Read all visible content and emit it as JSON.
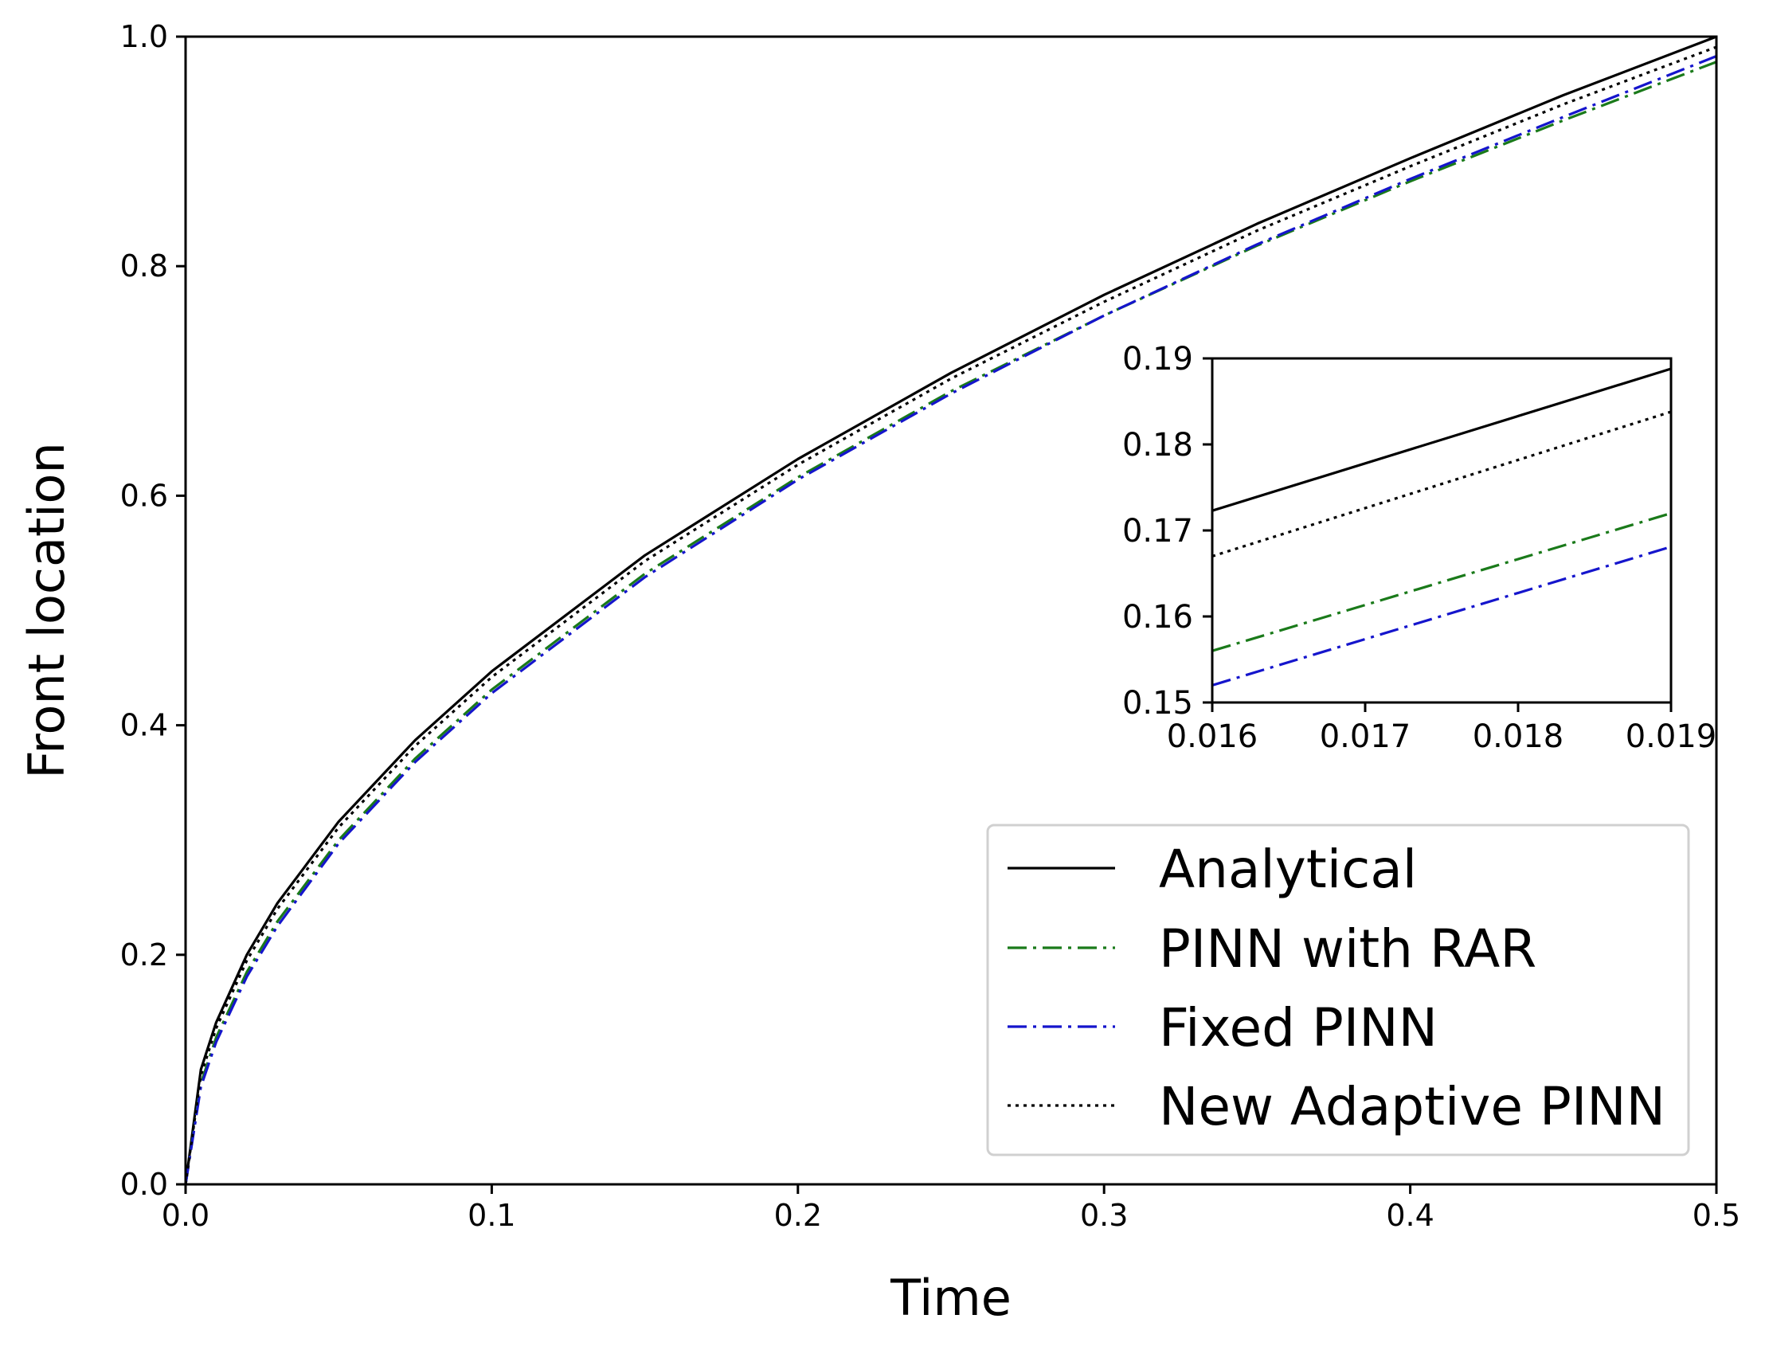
{
  "chart_data": {
    "type": "line",
    "title": "",
    "xlabel": "Time",
    "ylabel": "Front location",
    "xlim": [
      0,
      0.5
    ],
    "ylim": [
      0,
      1.0
    ],
    "xticks": [
      "0.0",
      "0.1",
      "0.2",
      "0.3",
      "0.4",
      "0.5"
    ],
    "yticks": [
      "0.0",
      "0.2",
      "0.4",
      "0.6",
      "0.8",
      "1.0"
    ],
    "grid": false,
    "legend": {
      "placement": "lower-right"
    },
    "series": [
      {
        "name": "Analytical",
        "color": "#000000",
        "style": "solid",
        "x": [
          0,
          0.005,
          0.01,
          0.02,
          0.03,
          0.05,
          0.075,
          0.1,
          0.15,
          0.2,
          0.25,
          0.3,
          0.35,
          0.4,
          0.45,
          0.5
        ],
        "y": [
          0,
          0.1,
          0.141,
          0.2,
          0.245,
          0.316,
          0.387,
          0.447,
          0.548,
          0.632,
          0.707,
          0.775,
          0.837,
          0.894,
          0.949,
          1.0
        ]
      },
      {
        "name": "PINN with RAR",
        "color": "#1a7a1a",
        "style": "dashdot",
        "x": [
          0,
          0.005,
          0.01,
          0.02,
          0.03,
          0.05,
          0.075,
          0.1,
          0.15,
          0.2,
          0.25,
          0.3,
          0.35,
          0.4,
          0.45,
          0.5
        ],
        "y": [
          0,
          0.088,
          0.128,
          0.185,
          0.229,
          0.3,
          0.371,
          0.431,
          0.532,
          0.616,
          0.691,
          0.757,
          0.818,
          0.874,
          0.927,
          0.978
        ]
      },
      {
        "name": "Fixed PINN",
        "color": "#1515cc",
        "style": "dashdot",
        "x": [
          0,
          0.005,
          0.01,
          0.02,
          0.03,
          0.05,
          0.075,
          0.1,
          0.15,
          0.2,
          0.25,
          0.3,
          0.35,
          0.4,
          0.45,
          0.5
        ],
        "y": [
          0,
          0.085,
          0.124,
          0.181,
          0.225,
          0.297,
          0.368,
          0.428,
          0.529,
          0.614,
          0.689,
          0.757,
          0.819,
          0.876,
          0.93,
          0.983
        ]
      },
      {
        "name": "New Adaptive PINN",
        "color": "#000000",
        "style": "dotted",
        "x": [
          0,
          0.005,
          0.01,
          0.02,
          0.03,
          0.05,
          0.075,
          0.1,
          0.15,
          0.2,
          0.25,
          0.3,
          0.35,
          0.4,
          0.45,
          0.5
        ],
        "y": [
          0,
          0.095,
          0.136,
          0.195,
          0.24,
          0.311,
          0.382,
          0.442,
          0.543,
          0.627,
          0.702,
          0.769,
          0.831,
          0.887,
          0.941,
          0.991
        ]
      }
    ],
    "inset": {
      "xlim": [
        0.016,
        0.019
      ],
      "ylim": [
        0.15,
        0.19
      ],
      "xticks": [
        "0.016",
        "0.017",
        "0.018",
        "0.019"
      ],
      "yticks": [
        "0.15",
        "0.16",
        "0.17",
        "0.18",
        "0.19"
      ],
      "series": [
        {
          "name": "Analytical",
          "x": [
            0.016,
            0.019
          ],
          "y": [
            0.1723,
            0.1888
          ]
        },
        {
          "name": "New Adaptive PINN",
          "x": [
            0.016,
            0.019
          ],
          "y": [
            0.167,
            0.1838
          ]
        },
        {
          "name": "PINN with RAR",
          "x": [
            0.016,
            0.019
          ],
          "y": [
            0.156,
            0.172
          ]
        },
        {
          "name": "Fixed PINN",
          "x": [
            0.016,
            0.019
          ],
          "y": [
            0.152,
            0.1681
          ]
        }
      ]
    }
  }
}
